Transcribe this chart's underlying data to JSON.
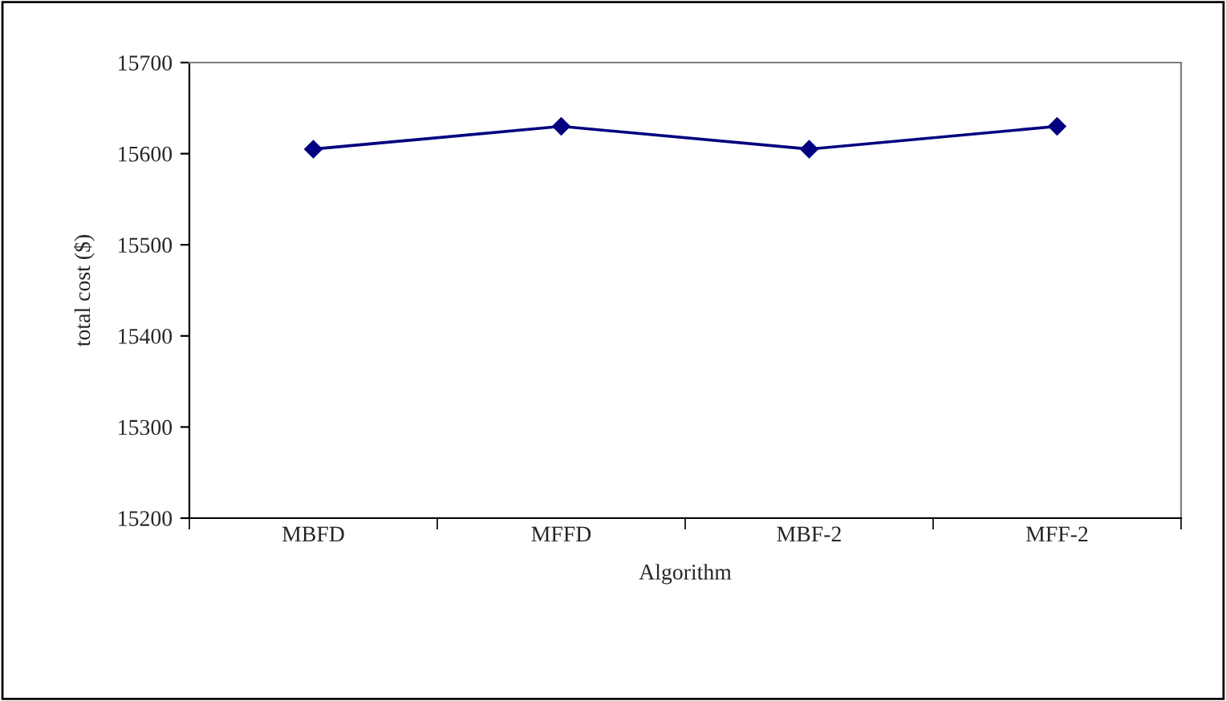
{
  "chart_data": {
    "type": "line",
    "xlabel": "Algorithm",
    "ylabel": "total cost ($)",
    "categories": [
      "MBFD",
      "MFFD",
      "MBF-2",
      "MFF-2"
    ],
    "series": [
      {
        "color": "#000080",
        "values": [
          15605,
          15630,
          15605,
          15630
        ]
      }
    ],
    "ylim": [
      15200,
      15700
    ],
    "yticks": [
      15200,
      15300,
      15400,
      15500,
      15600,
      15700
    ],
    "marker": "diamond",
    "line_style": "solid",
    "grid": false,
    "legend": false
  }
}
